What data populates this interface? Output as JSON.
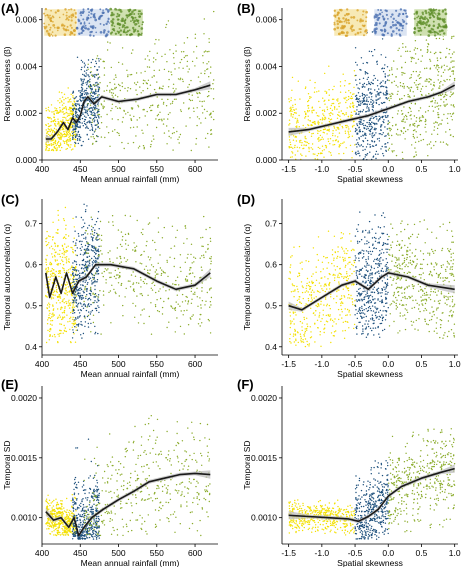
{
  "colors": {
    "yellow": "#f3e000",
    "blue": "#1c4f7c",
    "green": "#8aab2a",
    "smooth_line": "#1a1a1a",
    "ci_band": "#bdbdbd",
    "axis": "#000000"
  },
  "chart_data": [
    {
      "panel": "(A)",
      "type": "scatter",
      "xlabel": "Mean annual rainfall (mm)",
      "ylabel": "Responsiveness (β)",
      "xlim": [
        400,
        630
      ],
      "ylim": [
        0,
        0.0065
      ],
      "xticks": [
        400,
        450,
        500,
        550,
        600
      ],
      "yticks": [
        0.0,
        0.002,
        0.004,
        0.006
      ],
      "ytick_labels": [
        "0.000",
        "0.002",
        "0.004",
        "0.006"
      ],
      "inset": [
        "yellow-patch-icon",
        "blue-patch-icon",
        "green-patch-icon"
      ],
      "series": [
        {
          "color": "yellow",
          "x_range": [
            405,
            445
          ],
          "y_range": [
            0.0004,
            0.0032
          ]
        },
        {
          "color": "blue",
          "x_range": [
            440,
            475
          ],
          "y_range": [
            0.0006,
            0.0045
          ]
        },
        {
          "color": "green",
          "x_range": [
            460,
            625
          ],
          "y_range": [
            0.0004,
            0.0064
          ]
        }
      ],
      "smooth": [
        [
          405,
          0.0009
        ],
        [
          412,
          0.0009
        ],
        [
          420,
          0.0012
        ],
        [
          428,
          0.0016
        ],
        [
          434,
          0.0013
        ],
        [
          440,
          0.0018
        ],
        [
          445,
          0.0016
        ],
        [
          450,
          0.0019
        ],
        [
          455,
          0.0025
        ],
        [
          460,
          0.0027
        ],
        [
          468,
          0.0024
        ],
        [
          478,
          0.0027
        ],
        [
          500,
          0.0025
        ],
        [
          525,
          0.0026
        ],
        [
          550,
          0.0028
        ],
        [
          575,
          0.0028
        ],
        [
          600,
          0.003
        ],
        [
          620,
          0.0032
        ]
      ]
    },
    {
      "panel": "(B)",
      "type": "scatter",
      "xlabel": "Spatial skewness",
      "ylabel": "Responsiveness (β)",
      "xlim": [
        -1.6,
        1.05
      ],
      "ylim": [
        0,
        0.0065
      ],
      "xticks": [
        -1.5,
        -1.0,
        -0.5,
        0.0,
        0.5,
        1.0
      ],
      "xtick_labels": [
        "-1.5",
        "-1.0",
        "-0.5",
        "0.0",
        "0.5",
        "1.0"
      ],
      "yticks": [
        0.0,
        0.002,
        0.004,
        0.006
      ],
      "ytick_labels": [
        "0.000",
        "0.002",
        "0.004",
        "0.006"
      ],
      "inset": [
        "yellow-patch-icon",
        "blue-patch-icon",
        "green-patch-icon"
      ],
      "series": [
        {
          "color": "yellow",
          "x_range": [
            -1.5,
            -0.5
          ],
          "y_range": [
            0.0,
            0.0042
          ]
        },
        {
          "color": "blue",
          "x_range": [
            -0.5,
            0.0
          ],
          "y_range": [
            0.0,
            0.0058
          ]
        },
        {
          "color": "green",
          "x_range": [
            0.0,
            1.0
          ],
          "y_range": [
            0.0,
            0.0062
          ]
        }
      ],
      "smooth": [
        [
          -1.5,
          0.0012
        ],
        [
          -1.2,
          0.0013
        ],
        [
          -0.9,
          0.0015
        ],
        [
          -0.6,
          0.0017
        ],
        [
          -0.3,
          0.0019
        ],
        [
          0.0,
          0.0022
        ],
        [
          0.3,
          0.0025
        ],
        [
          0.6,
          0.0027
        ],
        [
          0.8,
          0.0029
        ],
        [
          1.0,
          0.0032
        ]
      ]
    },
    {
      "panel": "(C)",
      "type": "scatter",
      "xlabel": "Mean annual rainfall (mm)",
      "ylabel": "Temporal autocorrelation (α)",
      "xlim": [
        400,
        630
      ],
      "ylim": [
        0.38,
        0.76
      ],
      "xticks": [
        400,
        450,
        500,
        550,
        600
      ],
      "yticks": [
        0.4,
        0.5,
        0.6,
        0.7
      ],
      "ytick_labels": [
        "0.4",
        "0.5",
        "0.6",
        "0.7"
      ],
      "series": [
        {
          "color": "yellow",
          "x_range": [
            405,
            445
          ],
          "y_range": [
            0.41,
            0.74
          ]
        },
        {
          "color": "blue",
          "x_range": [
            440,
            475
          ],
          "y_range": [
            0.42,
            0.75
          ]
        },
        {
          "color": "green",
          "x_range": [
            455,
            622
          ],
          "y_range": [
            0.43,
            0.72
          ]
        }
      ],
      "smooth": [
        [
          405,
          0.58
        ],
        [
          410,
          0.52
        ],
        [
          418,
          0.57
        ],
        [
          425,
          0.53
        ],
        [
          432,
          0.58
        ],
        [
          440,
          0.53
        ],
        [
          448,
          0.56
        ],
        [
          458,
          0.57
        ],
        [
          470,
          0.6
        ],
        [
          490,
          0.6
        ],
        [
          520,
          0.59
        ],
        [
          550,
          0.56
        ],
        [
          575,
          0.54
        ],
        [
          600,
          0.55
        ],
        [
          620,
          0.58
        ]
      ]
    },
    {
      "panel": "(D)",
      "type": "scatter",
      "xlabel": "Spatial skewness",
      "ylabel": "Temporal autocorrelation (α)",
      "xlim": [
        -1.6,
        1.05
      ],
      "ylim": [
        0.38,
        0.76
      ],
      "xticks": [
        -1.5,
        -1.0,
        -0.5,
        0.0,
        0.5,
        1.0
      ],
      "xtick_labels": [
        "-1.5",
        "-1.0",
        "-0.5",
        "0.0",
        "0.5",
        "1.0"
      ],
      "yticks": [
        0.4,
        0.5,
        0.6,
        0.7
      ],
      "ytick_labels": [
        "0.4",
        "0.5",
        "0.6",
        "0.7"
      ],
      "series": [
        {
          "color": "yellow",
          "x_range": [
            -1.5,
            -0.5
          ],
          "y_range": [
            0.4,
            0.7
          ]
        },
        {
          "color": "blue",
          "x_range": [
            -0.5,
            0.0
          ],
          "y_range": [
            0.41,
            0.74
          ]
        },
        {
          "color": "green",
          "x_range": [
            0.0,
            1.0
          ],
          "y_range": [
            0.42,
            0.71
          ]
        }
      ],
      "smooth": [
        [
          -1.5,
          0.5
        ],
        [
          -1.3,
          0.49
        ],
        [
          -1.0,
          0.52
        ],
        [
          -0.7,
          0.55
        ],
        [
          -0.5,
          0.56
        ],
        [
          -0.3,
          0.54
        ],
        [
          -0.1,
          0.57
        ],
        [
          0.0,
          0.58
        ],
        [
          0.3,
          0.57
        ],
        [
          0.6,
          0.55
        ],
        [
          1.0,
          0.54
        ]
      ]
    },
    {
      "panel": "(E)",
      "type": "scatter",
      "xlabel": "Mean annual rainfall (mm)",
      "ylabel": "Temporal SD",
      "xlim": [
        400,
        630
      ],
      "ylim": [
        0.00078,
        0.0021
      ],
      "xticks": [
        400,
        450,
        500,
        550,
        600
      ],
      "yticks": [
        0.001,
        0.0015,
        0.002
      ],
      "ytick_labels": [
        "0.0010",
        "0.0015",
        "0.0020"
      ],
      "series": [
        {
          "color": "yellow",
          "x_range": [
            405,
            445
          ],
          "y_range": [
            0.00085,
            0.0012
          ]
        },
        {
          "color": "blue",
          "x_range": [
            440,
            475
          ],
          "y_range": [
            0.00082,
            0.0017
          ]
        },
        {
          "color": "green",
          "x_range": [
            455,
            620
          ],
          "y_range": [
            0.00085,
            0.0019
          ]
        }
      ],
      "smooth": [
        [
          405,
          0.00105
        ],
        [
          415,
          0.00098
        ],
        [
          425,
          0.001
        ],
        [
          435,
          0.00092
        ],
        [
          442,
          0.001
        ],
        [
          448,
          0.00085
        ],
        [
          455,
          0.00092
        ],
        [
          465,
          0.001
        ],
        [
          480,
          0.00107
        ],
        [
          500,
          0.00115
        ],
        [
          520,
          0.00122
        ],
        [
          540,
          0.0013
        ],
        [
          560,
          0.00133
        ],
        [
          580,
          0.00136
        ],
        [
          600,
          0.00137
        ],
        [
          620,
          0.00136
        ]
      ]
    },
    {
      "panel": "(F)",
      "type": "scatter",
      "xlabel": "Spatial skewness",
      "ylabel": "Temporal SD",
      "xlim": [
        -1.6,
        1.05
      ],
      "ylim": [
        0.00078,
        0.0021
      ],
      "xticks": [
        -1.5,
        -1.0,
        -0.5,
        0.0,
        0.5,
        1.0
      ],
      "xtick_labels": [
        "-1.5",
        "-1.0",
        "-0.5",
        "0.0",
        "0.5",
        "1.0"
      ],
      "yticks": [
        0.001,
        0.0015,
        0.002
      ],
      "ytick_labels": [
        "0.0010",
        "0.0015",
        "0.0020"
      ],
      "series": [
        {
          "color": "yellow",
          "x_range": [
            -1.5,
            -0.5
          ],
          "y_range": [
            0.00085,
            0.00115
          ]
        },
        {
          "color": "blue",
          "x_range": [
            -0.5,
            0.0
          ],
          "y_range": [
            0.00082,
            0.0015
          ]
        },
        {
          "color": "green",
          "x_range": [
            0.0,
            1.0
          ],
          "y_range": [
            0.00088,
            0.00175
          ]
        }
      ],
      "smooth": [
        [
          -1.5,
          0.00102
        ],
        [
          -1.2,
          0.00101
        ],
        [
          -0.9,
          0.001
        ],
        [
          -0.6,
          0.00099
        ],
        [
          -0.45,
          0.00097
        ],
        [
          -0.3,
          0.00101
        ],
        [
          -0.15,
          0.00107
        ],
        [
          0.0,
          0.00118
        ],
        [
          0.2,
          0.00126
        ],
        [
          0.5,
          0.00133
        ],
        [
          0.8,
          0.00138
        ],
        [
          1.0,
          0.00141
        ]
      ]
    }
  ]
}
